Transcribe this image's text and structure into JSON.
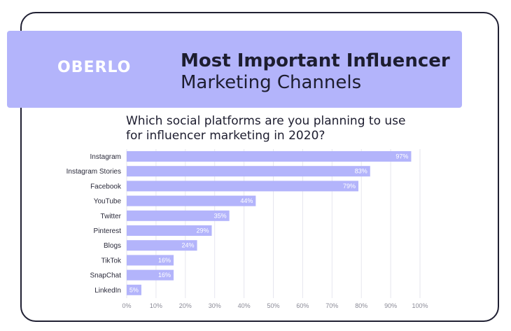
{
  "brand": {
    "logo_text": "OBERLO"
  },
  "header": {
    "title_bold": "Most Important Influencer",
    "title_light": "Marketing Channels"
  },
  "colors": {
    "banner": "#b3b4fb",
    "bar": "#b3b4fb",
    "border": "#202033",
    "text": "#1d1d2f"
  },
  "chart_data": {
    "type": "bar",
    "orientation": "horizontal",
    "title": "Which social platforms are you planning to use for influencer marketing in 2020?",
    "categories": [
      "Instagram",
      "Instagram Stories",
      "Facebook",
      "YouTube",
      "Twitter",
      "Pinterest",
      "Blogs",
      "TikTok",
      "SnapChat",
      "LinkedIn"
    ],
    "values": [
      97,
      83,
      79,
      44,
      35,
      29,
      24,
      16,
      16,
      5
    ],
    "value_labels": [
      "97%",
      "83%",
      "79%",
      "44%",
      "35%",
      "29%",
      "24%",
      "16%",
      "16%",
      "5%"
    ],
    "xlim": [
      0,
      100
    ],
    "xticks": [
      "0%",
      "10%",
      "20%",
      "30%",
      "40%",
      "50%",
      "60%",
      "70%",
      "80%",
      "90%",
      "100%"
    ],
    "grid": true
  }
}
